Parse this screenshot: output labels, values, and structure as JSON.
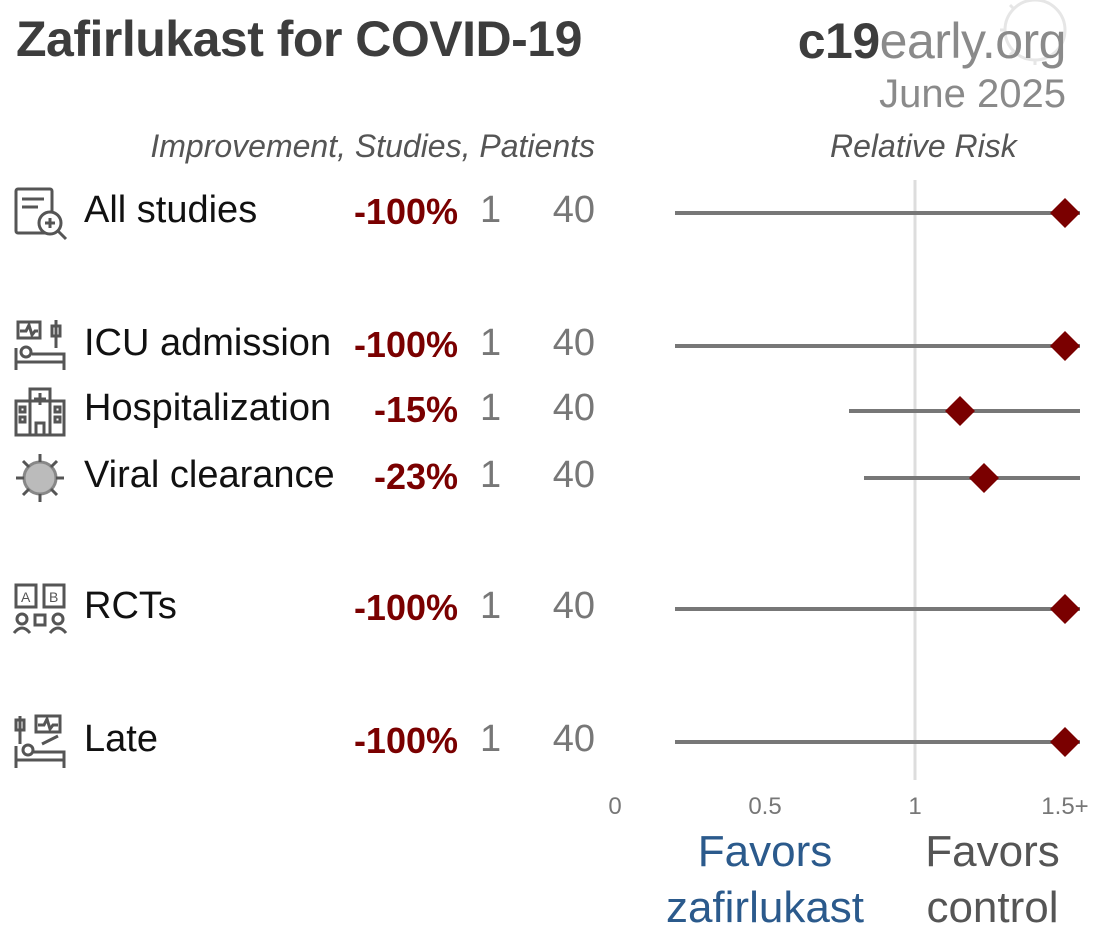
{
  "header": {
    "title": "Zafirlukast for COVID-19",
    "brand_bold": "c19",
    "brand_rest": "early",
    "brand_tld": ".org",
    "date": "June 2025"
  },
  "columns": {
    "left_header": "Improvement, Studies, Patients",
    "right_header": "Relative Risk"
  },
  "favors": {
    "left_line1": "Favors",
    "left_line2": "zafirlukast",
    "right_line1": "Favors",
    "right_line2": "control"
  },
  "colors": {
    "marker": "#7a0000",
    "whisker": "#777777",
    "reference_line": "#dddddd",
    "favors_treatment": "#2b5a8c"
  },
  "chart_data": {
    "type": "forest",
    "xlabel": "Relative Risk",
    "xlim": [
      0,
      1.5
    ],
    "reference": 1,
    "x_ticks": [
      "0",
      "0.5",
      "1",
      "1.5+"
    ],
    "rows": [
      {
        "label": "All studies",
        "icon": "document-search-icon",
        "improvement": "-100%",
        "studies": "1",
        "patients": "40",
        "rr": 1.5,
        "ci_low": 0.2,
        "ci_high": 1.5
      },
      {
        "label": "ICU admission",
        "icon": "icu-bed-icon",
        "improvement": "-100%",
        "studies": "1",
        "patients": "40",
        "rr": 1.5,
        "ci_low": 0.2,
        "ci_high": 1.5
      },
      {
        "label": "Hospitalization",
        "icon": "hospital-icon",
        "improvement": "-15%",
        "studies": "1",
        "patients": "40",
        "rr": 1.15,
        "ci_low": 0.78,
        "ci_high": 1.5
      },
      {
        "label": "Viral clearance",
        "icon": "virus-icon",
        "improvement": "-23%",
        "studies": "1",
        "patients": "40",
        "rr": 1.23,
        "ci_low": 0.83,
        "ci_high": 1.5
      },
      {
        "label": "RCTs",
        "icon": "rct-icon",
        "improvement": "-100%",
        "studies": "1",
        "patients": "40",
        "rr": 1.5,
        "ci_low": 0.2,
        "ci_high": 1.5
      },
      {
        "label": "Late",
        "icon": "late-treatment-icon",
        "improvement": "-100%",
        "studies": "1",
        "patients": "40",
        "rr": 1.5,
        "ci_low": 0.2,
        "ci_high": 1.5
      }
    ]
  }
}
